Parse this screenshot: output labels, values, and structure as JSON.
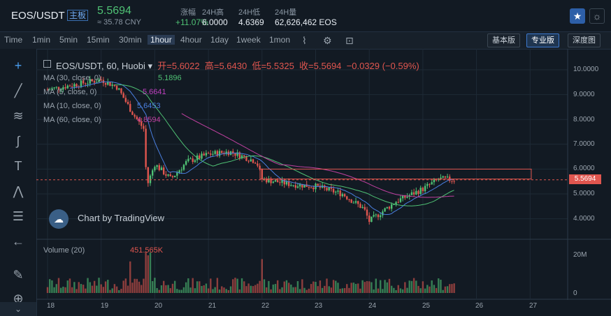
{
  "header": {
    "pair": "EOS/USDT",
    "board": "主板",
    "price": "5.5694",
    "cny": "≈ 35.78 CNY",
    "stats": [
      {
        "label": "涨幅",
        "value": "+11.07%",
        "color": "#4fc174"
      },
      {
        "label": "24H高",
        "value": "6.0000",
        "color": "#e8eef4"
      },
      {
        "label": "24H低",
        "value": "4.6369",
        "color": "#e8eef4"
      },
      {
        "label": "24H量",
        "value": "62,626,462 EOS",
        "color": "#e8eef4"
      }
    ]
  },
  "intervals": [
    "Time",
    "1min",
    "5min",
    "15min",
    "30min",
    "1hour",
    "4hour",
    "1day",
    "1week",
    "1mon"
  ],
  "active_interval": "1hour",
  "views": {
    "basic": "基本版",
    "pro": "专业版",
    "depth": "深度图"
  },
  "legend": {
    "symbol": "EOS/USDT, 60, Huobi",
    "open_label": "开=",
    "open": "5.6022",
    "high_label": "高=",
    "high": "5.6430",
    "low_label": "低=",
    "low": "5.5325",
    "close_label": "收=",
    "close": "5.5694",
    "change": "−0.0329 (−0.59%)",
    "ma": [
      {
        "label": "MA (30, close, 0)",
        "value": "5.1896",
        "color": "#4fc174"
      },
      {
        "label": "MA (5, close, 0)",
        "value": "5.6641",
        "color": "#c040c0"
      },
      {
        "label": "MA (10, close, 0)",
        "value": "5.6453",
        "color": "#4a7fe0"
      },
      {
        "label": "MA (60, close, 0)",
        "value": "4.8594",
        "color": "#c040a0"
      }
    ],
    "volume_label": "Volume (20)",
    "volume_value": "451.565K"
  },
  "axis": {
    "price_ticks": [
      "10.0000",
      "9.0000",
      "8.0000",
      "7.0000",
      "6.0000",
      "5.0000",
      "4.0000"
    ],
    "current_price_tag": "5.5694",
    "volume_ticks": [
      "20M",
      "0"
    ],
    "dates": [
      "18",
      "19",
      "20",
      "21",
      "22",
      "23",
      "24",
      "25",
      "26",
      "27"
    ]
  },
  "watermark": "Chart by TradingView",
  "colors": {
    "up": "#4fc174",
    "down": "#e0564f",
    "bg": "#121a23"
  },
  "chart_data": {
    "type": "line",
    "title": "",
    "xlabel": "",
    "ylabel": "",
    "x": [
      18,
      18.5,
      19,
      19.3,
      19.6,
      19.8,
      19.85,
      20,
      20.3,
      20.6,
      21,
      21.4,
      21.9,
      22,
      22.5,
      23,
      23.5,
      23.9,
      24,
      24.5,
      25,
      25.3,
      25.6
    ],
    "series": [
      {
        "name": "EOS/USDT",
        "values": [
          9.2,
          9.4,
          9.6,
          9.3,
          8.2,
          7.6,
          5.3,
          6.2,
          5.6,
          6.3,
          6.6,
          6.7,
          6.3,
          5.6,
          5.4,
          5.3,
          5.0,
          4.4,
          3.9,
          4.7,
          5.2,
          5.6,
          5.57
        ]
      }
    ],
    "ylim": [
      3.5,
      10.2
    ],
    "xlim": [
      17.8,
      27.6
    ],
    "grid": true
  }
}
